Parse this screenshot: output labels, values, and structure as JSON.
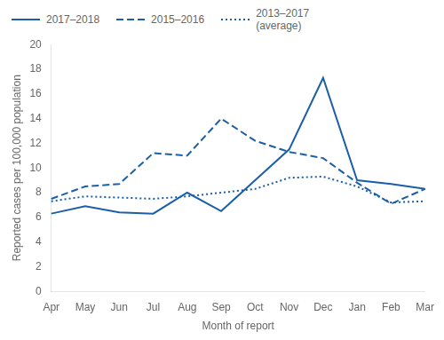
{
  "chart_data": {
    "type": "line",
    "xlabel": "Month of report",
    "ylabel": "Reported cases per 100,000 population",
    "categories": [
      "Apr",
      "May",
      "Jun",
      "Jul",
      "Aug",
      "Sep",
      "Oct",
      "Nov",
      "Dec",
      "Jan",
      "Feb",
      "Mar"
    ],
    "series": [
      {
        "name": "2017–2018",
        "color": "#1a5fa8",
        "line_style": "solid",
        "values": [
          6.3,
          6.9,
          6.4,
          6.3,
          8.0,
          6.5,
          9.0,
          11.5,
          17.3,
          9.0,
          8.7,
          8.3
        ]
      },
      {
        "name": "2015–2016",
        "color": "#1a5fa8",
        "line_style": "dashed",
        "values": [
          7.5,
          8.5,
          8.7,
          11.2,
          11.0,
          14.0,
          12.2,
          11.3,
          10.8,
          8.8,
          7.1,
          8.3
        ]
      },
      {
        "name": "2013–2017\n(average)",
        "color": "#1a5fa8",
        "line_style": "dotted",
        "values": [
          7.3,
          7.7,
          7.6,
          7.5,
          7.7,
          8.0,
          8.3,
          9.2,
          9.3,
          8.5,
          7.2,
          7.3
        ]
      }
    ],
    "ylim": [
      0,
      20
    ],
    "yticks": [
      0,
      2,
      4,
      6,
      8,
      10,
      12,
      14,
      16,
      18,
      20
    ],
    "grid": false,
    "legend": "upper left"
  }
}
